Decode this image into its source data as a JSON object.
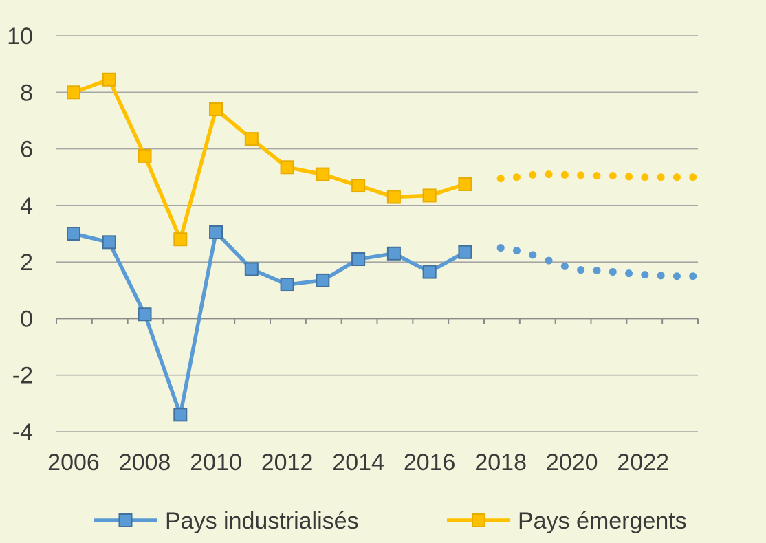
{
  "chart_data": {
    "type": "line",
    "x": [
      2006,
      2007,
      2008,
      2009,
      2010,
      2011,
      2012,
      2013,
      2014,
      2015,
      2016,
      2017
    ],
    "x_projection": [
      2018,
      2018.45,
      2018.9,
      2019.35,
      2019.8,
      2020.25,
      2020.7,
      2021.15,
      2021.6,
      2022.05,
      2022.5,
      2022.95,
      2023.4
    ],
    "series": [
      {
        "name": "Pays industrialisés",
        "color": "#5b9bd5",
        "values": [
          3.0,
          2.7,
          0.15,
          -3.4,
          3.05,
          1.75,
          1.2,
          1.35,
          2.1,
          2.3,
          1.65,
          2.35
        ],
        "projection": [
          2.5,
          2.4,
          2.25,
          2.05,
          1.85,
          1.72,
          1.7,
          1.65,
          1.6,
          1.55,
          1.52,
          1.5,
          1.5
        ]
      },
      {
        "name": "Pays émergents",
        "color": "#ffc000",
        "values": [
          8.0,
          8.45,
          5.75,
          2.8,
          7.4,
          6.35,
          5.35,
          5.1,
          4.7,
          4.3,
          4.35,
          4.75
        ],
        "projection": [
          4.95,
          5.0,
          5.08,
          5.1,
          5.08,
          5.07,
          5.05,
          5.05,
          5.02,
          5.0,
          5.0,
          5.0,
          5.0
        ]
      }
    ],
    "y_ticks": [
      "10",
      "8",
      "6",
      "4",
      "2",
      "0",
      "-2",
      "-4"
    ],
    "x_ticks": [
      "2006",
      "2008",
      "2010",
      "2012",
      "2014",
      "2016",
      "2018",
      "2020",
      "2022"
    ],
    "ylim": [
      -4,
      10
    ],
    "xlim": [
      2005.5,
      2023.5
    ],
    "grid": true,
    "legend_position": "bottom"
  }
}
